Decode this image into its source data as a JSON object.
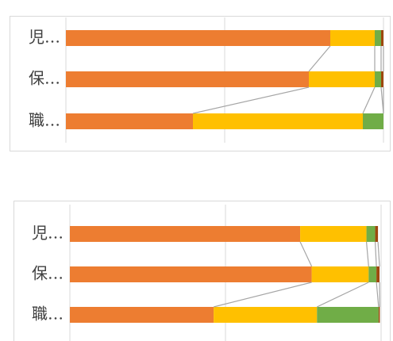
{
  "chart_data": [
    {
      "type": "bar",
      "orientation": "horizontal",
      "stacked": true,
      "series_lines": true,
      "grid": true,
      "categories": [
        "児…",
        "保…",
        "職…"
      ],
      "series": [
        {
          "color": "#ed7d31",
          "values": [
            83.25,
            76.5,
            40
          ]
        },
        {
          "color": "#ffc000",
          "values": [
            14,
            20.75,
            53.5
          ]
        },
        {
          "color": "#70ad47",
          "values": [
            2,
            2,
            6.5
          ]
        },
        {
          "color": "#9e480e",
          "values": [
            0.75,
            0.75,
            0
          ]
        }
      ],
      "xlim": [
        0,
        100
      ],
      "xticks": [
        0,
        50,
        100
      ]
    },
    {
      "type": "bar",
      "orientation": "horizontal",
      "stacked": true,
      "series_lines": true,
      "grid": true,
      "categories": [
        "児…",
        "保…",
        "職…"
      ],
      "series": [
        {
          "color": "#ed7d31",
          "values": [
            74,
            77.7,
            46.2
          ]
        },
        {
          "color": "#ffc000",
          "values": [
            21.3,
            18.3,
            33.2
          ]
        },
        {
          "color": "#70ad47",
          "values": [
            2.8,
            2.5,
            19.8
          ]
        },
        {
          "color": "#9e480e",
          "values": [
            0.9,
            1.0,
            0.4
          ]
        }
      ],
      "xlim": [
        0,
        100
      ],
      "xticks": [
        0,
        50,
        100
      ]
    }
  ]
}
